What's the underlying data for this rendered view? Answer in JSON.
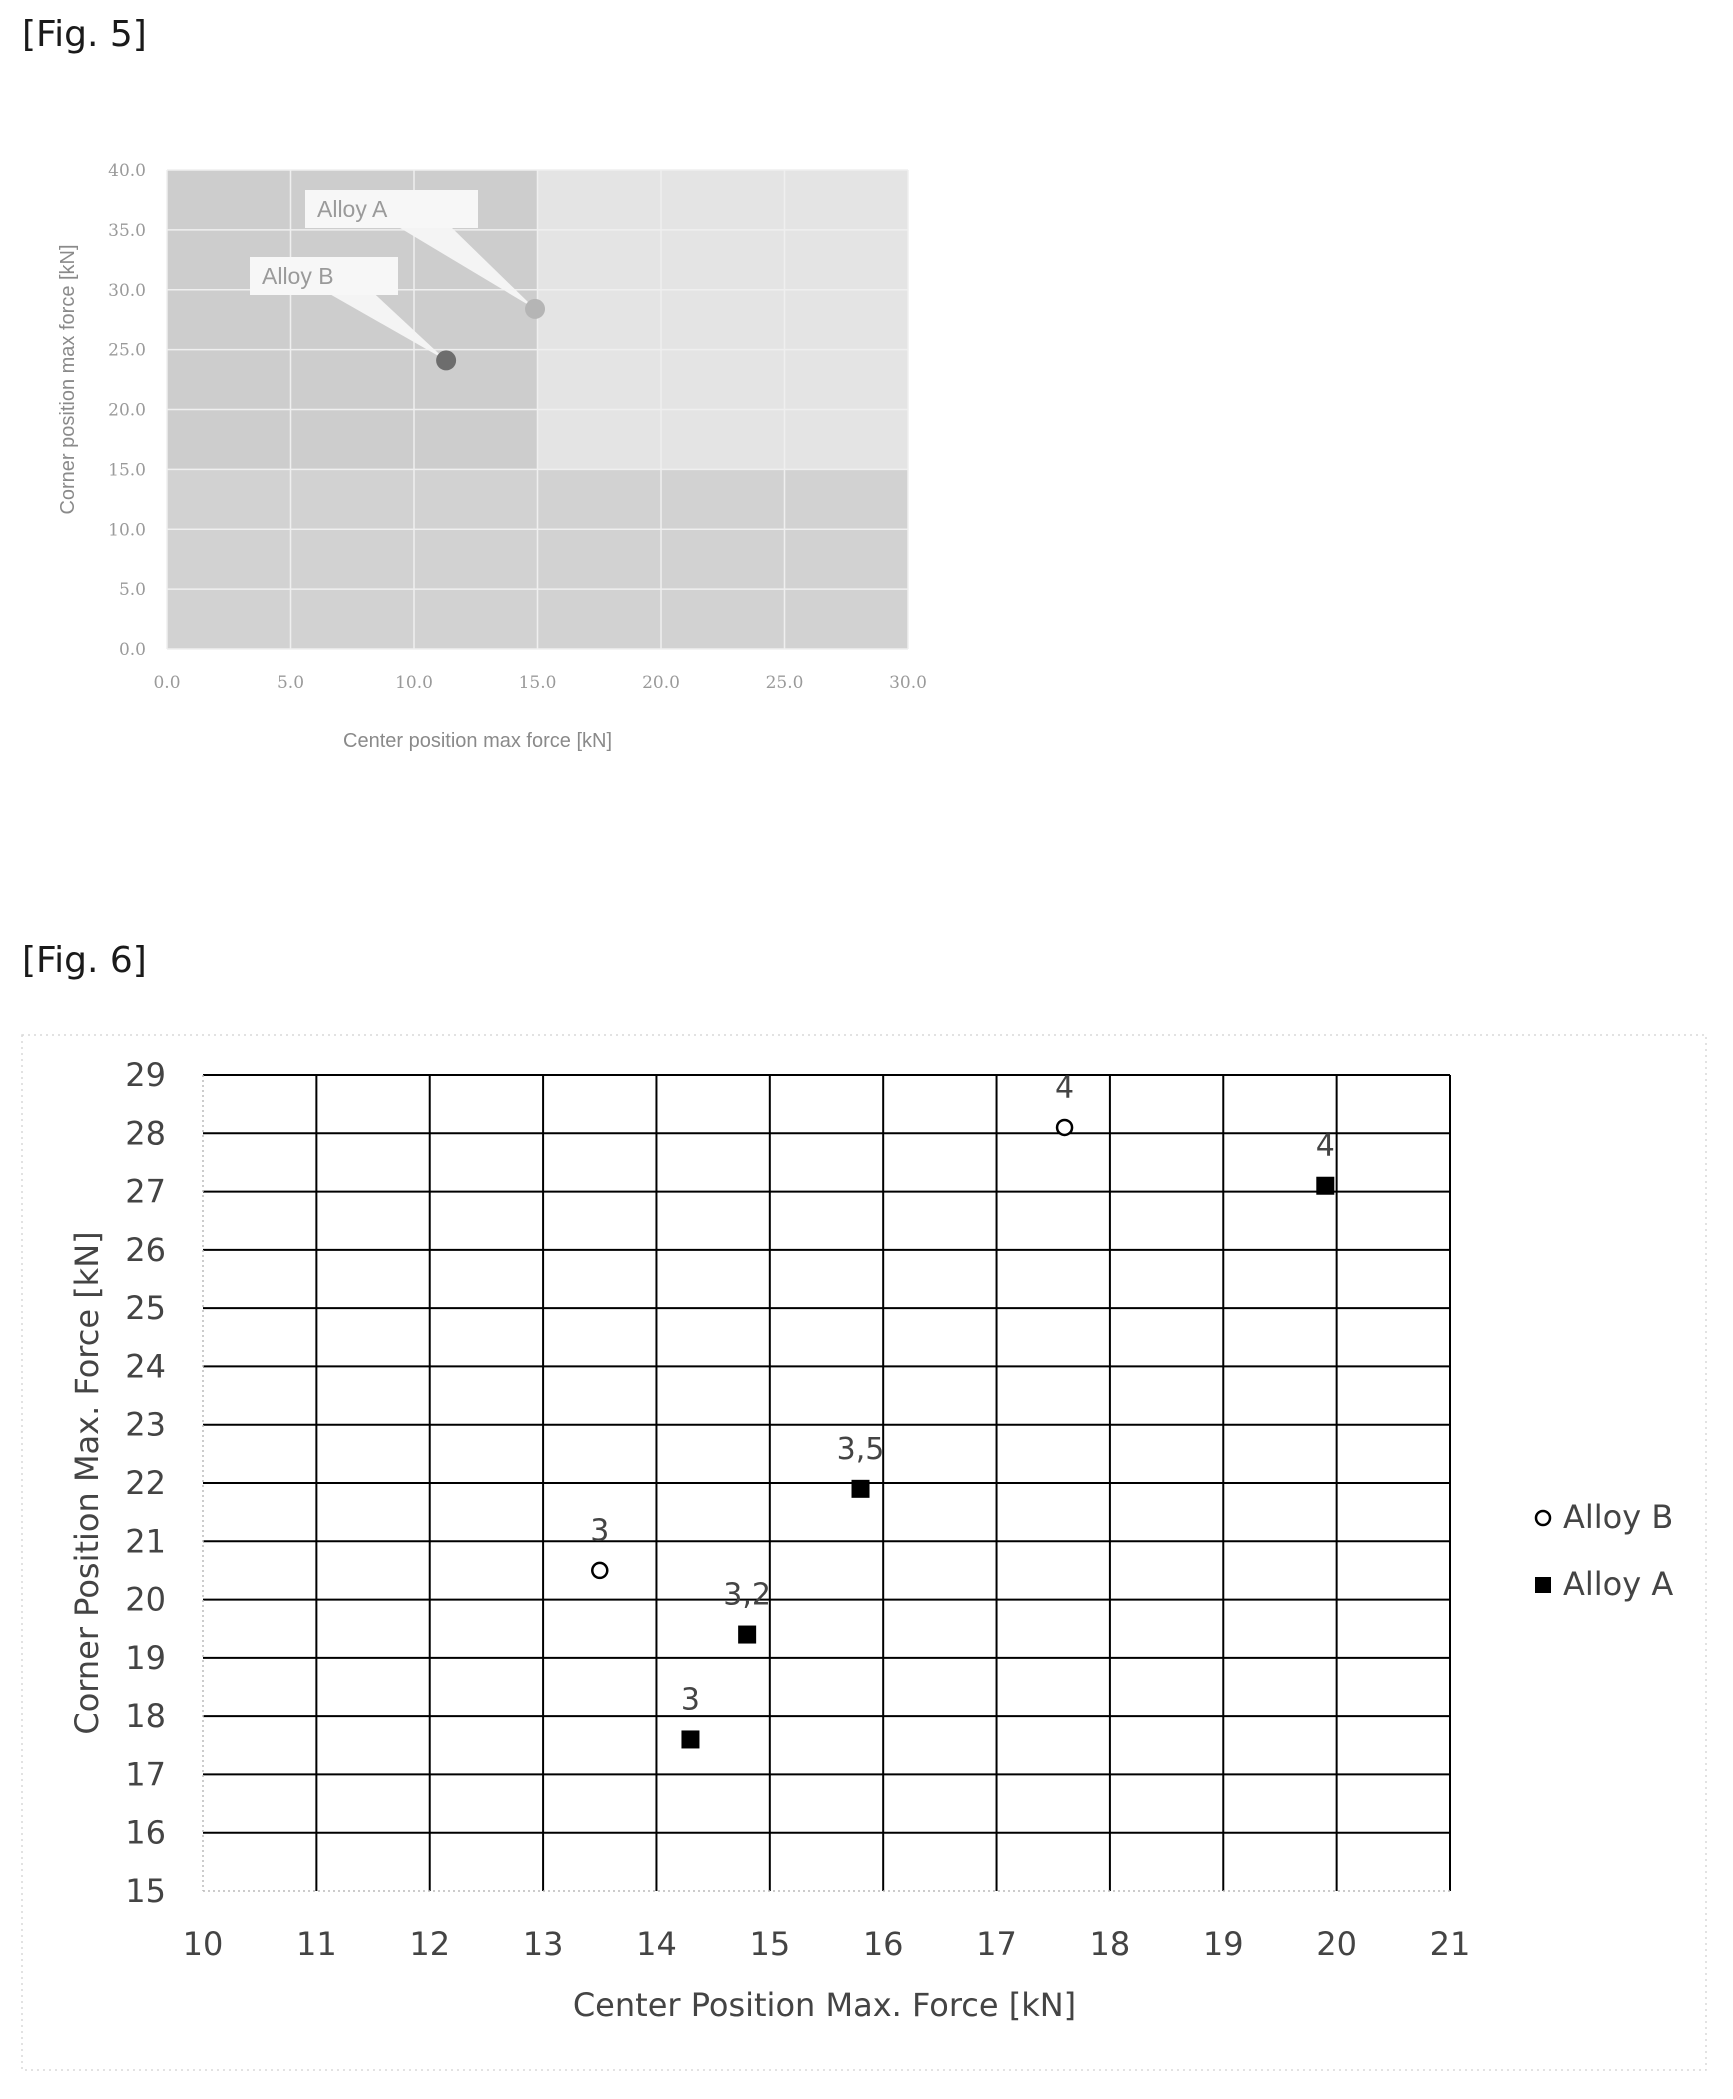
{
  "figures": {
    "fig5_label": "[Fig. 5]",
    "fig6_label": "[Fig. 6]"
  },
  "chart_data": [
    {
      "type": "scatter",
      "title": "",
      "xlabel": "Center position max force [kN]",
      "ylabel": "Corner position max force [kN]",
      "xlim": [
        0,
        30
      ],
      "ylim": [
        0,
        40
      ],
      "xticks": [
        "0.0",
        "5.0",
        "10.0",
        "15.0",
        "20.0",
        "25.0",
        "30.0"
      ],
      "yticks": [
        "0.0",
        "5.0",
        "10.0",
        "15.0",
        "20.0",
        "25.0",
        "30.0",
        "35.0",
        "40.0"
      ],
      "grid": true,
      "legend": "none",
      "series": [
        {
          "name": "Alloy A",
          "points": [
            {
              "x": 14.9,
              "y": 28.4
            }
          ],
          "color": "#b5b5b5"
        },
        {
          "name": "Alloy B",
          "points": [
            {
              "x": 11.3,
              "y": 24.1
            }
          ],
          "color": "#6d6d6d"
        }
      ],
      "callouts": [
        {
          "text": "Alloy A",
          "series": "Alloy A"
        },
        {
          "text": "Alloy B",
          "series": "Alloy B"
        }
      ]
    },
    {
      "type": "scatter",
      "title": "",
      "xlabel": "Center Position Max. Force [kN]",
      "ylabel": "Corner Position Max. Force [kN]",
      "xlim": [
        10,
        21
      ],
      "ylim": [
        15,
        29
      ],
      "xticks": [
        "10",
        "11",
        "12",
        "13",
        "14",
        "15",
        "16",
        "17",
        "18",
        "19",
        "20",
        "21"
      ],
      "yticks": [
        "15",
        "16",
        "17",
        "18",
        "19",
        "20",
        "21",
        "22",
        "23",
        "24",
        "25",
        "26",
        "27",
        "28",
        "29"
      ],
      "grid": true,
      "legend": "right",
      "series": [
        {
          "name": "Alloy B",
          "marker": "open-circle",
          "points": [
            {
              "x": 13.5,
              "y": 20.5,
              "label": "3"
            },
            {
              "x": 17.6,
              "y": 28.1,
              "label": "4"
            }
          ]
        },
        {
          "name": "Alloy A",
          "marker": "filled-square",
          "points": [
            {
              "x": 14.3,
              "y": 17.6,
              "label": "3"
            },
            {
              "x": 14.8,
              "y": 19.4,
              "label": "3,2"
            },
            {
              "x": 15.8,
              "y": 21.9,
              "label": "3,5"
            },
            {
              "x": 19.9,
              "y": 27.1,
              "label": "4"
            }
          ]
        }
      ]
    }
  ]
}
